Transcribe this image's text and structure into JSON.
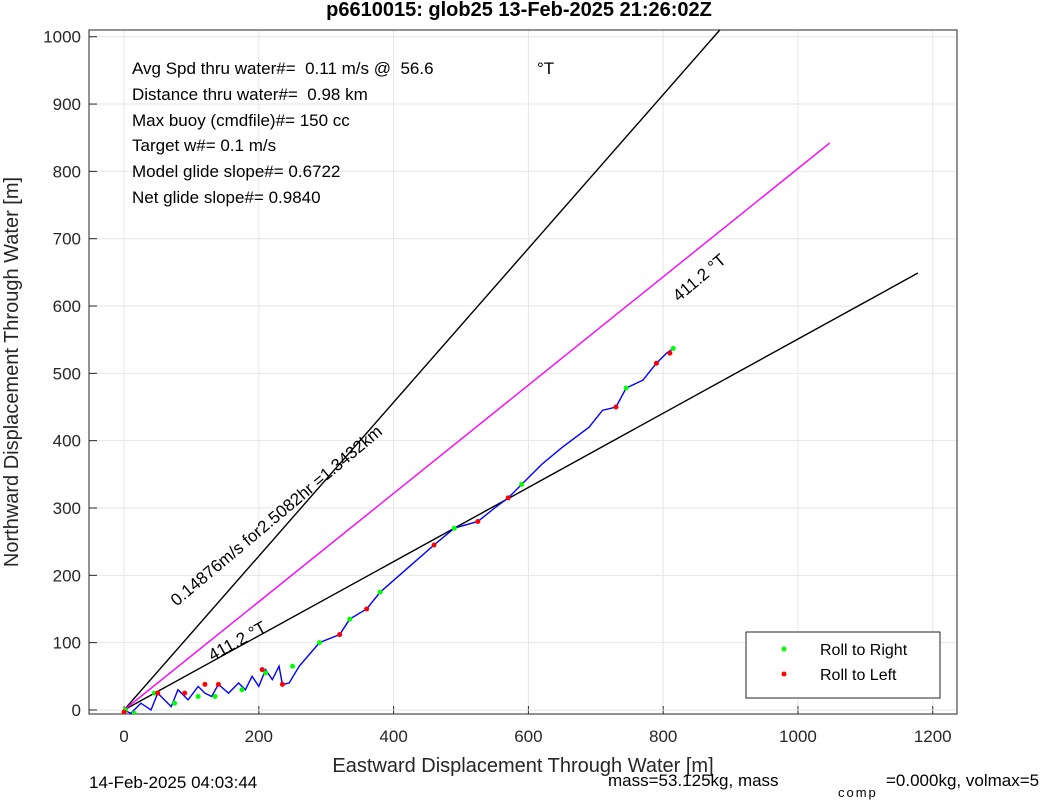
{
  "chart_data": {
    "type": "line",
    "title": "p6610015: glob25 13-Feb-2025 21:26:02Z",
    "x_label": "Eastward Displacement Through Water [m]",
    "y_label": "Northward Displacement Through Water [m]",
    "xlim": [
      -52,
      1236
    ],
    "ylim": [
      -6,
      1010
    ],
    "xticks": [
      0,
      200,
      400,
      600,
      800,
      1000,
      1200
    ],
    "yticks": [
      0,
      100,
      200,
      300,
      400,
      500,
      600,
      700,
      800,
      900,
      1000
    ],
    "grid": true,
    "legend": "lower right",
    "series": [
      {
        "color": "#000000",
        "x": [
          0,
          884
        ],
        "values": [
          0,
          1010
        ]
      },
      {
        "color": "#000000",
        "x": [
          0,
          1178
        ],
        "values": [
          0,
          649
        ]
      },
      {
        "color": "#ff00ff",
        "x": [
          0,
          1047
        ],
        "values": [
          0,
          842
        ]
      },
      {
        "color": "#0000ff",
        "x": [
          0,
          10,
          25,
          40,
          50,
          60,
          70,
          80,
          95,
          110,
          120,
          130,
          140,
          155,
          170,
          180,
          190,
          200,
          210,
          220,
          230,
          235,
          245,
          260,
          290,
          320,
          335,
          360,
          380,
          420,
          460,
          490,
          525,
          550,
          570,
          590,
          620,
          650,
          690,
          710,
          730,
          745,
          770,
          790,
          805,
          815
        ],
        "values": [
          0,
          -5,
          10,
          0,
          25,
          15,
          5,
          30,
          15,
          35,
          25,
          20,
          38,
          25,
          40,
          30,
          50,
          35,
          60,
          45,
          65,
          38,
          40,
          65,
          100,
          112,
          135,
          150,
          175,
          210,
          245,
          270,
          280,
          300,
          315,
          335,
          365,
          390,
          420,
          445,
          450,
          478,
          490,
          515,
          530,
          537
        ]
      },
      {
        "type": "scatter",
        "name": "Roll to Right",
        "color": "#00ff00",
        "x": [
          2,
          15,
          45,
          75,
          110,
          135,
          175,
          210,
          250,
          290,
          335,
          380,
          490,
          590,
          745,
          815
        ],
        "values": [
          0,
          -5,
          25,
          10,
          20,
          20,
          30,
          55,
          65,
          100,
          135,
          175,
          270,
          335,
          478,
          537
        ]
      },
      {
        "type": "scatter",
        "name": "Roll to Left",
        "color": "#ff0000",
        "x": [
          0,
          50,
          90,
          120,
          140,
          205,
          235,
          320,
          360,
          460,
          525,
          570,
          730,
          790,
          810
        ],
        "values": [
          -3,
          25,
          25,
          38,
          38,
          60,
          38,
          112,
          150,
          245,
          280,
          315,
          450,
          515,
          530
        ]
      }
    ],
    "annotations": [
      "Avg Spd thru water#=  0.11 m/s @  56.6",
      "°T",
      "Distance thru water#=  0.98 km",
      "Max buoy (cmdfile)#= 150 cc",
      "Target w#= 0.1 m/s",
      "Model glide slope#= 0.6722",
      "Net glide slope#= 0.9840",
      "411.2 °T",
      "0.14876m/s for2.5082hr =1.3432km",
      "411.2 °T"
    ],
    "footer": [
      "14-Feb-2025 04:03:44",
      "mass=53.125kg, mass",
      "comp",
      "=0.000kg, volmax=5"
    ]
  }
}
